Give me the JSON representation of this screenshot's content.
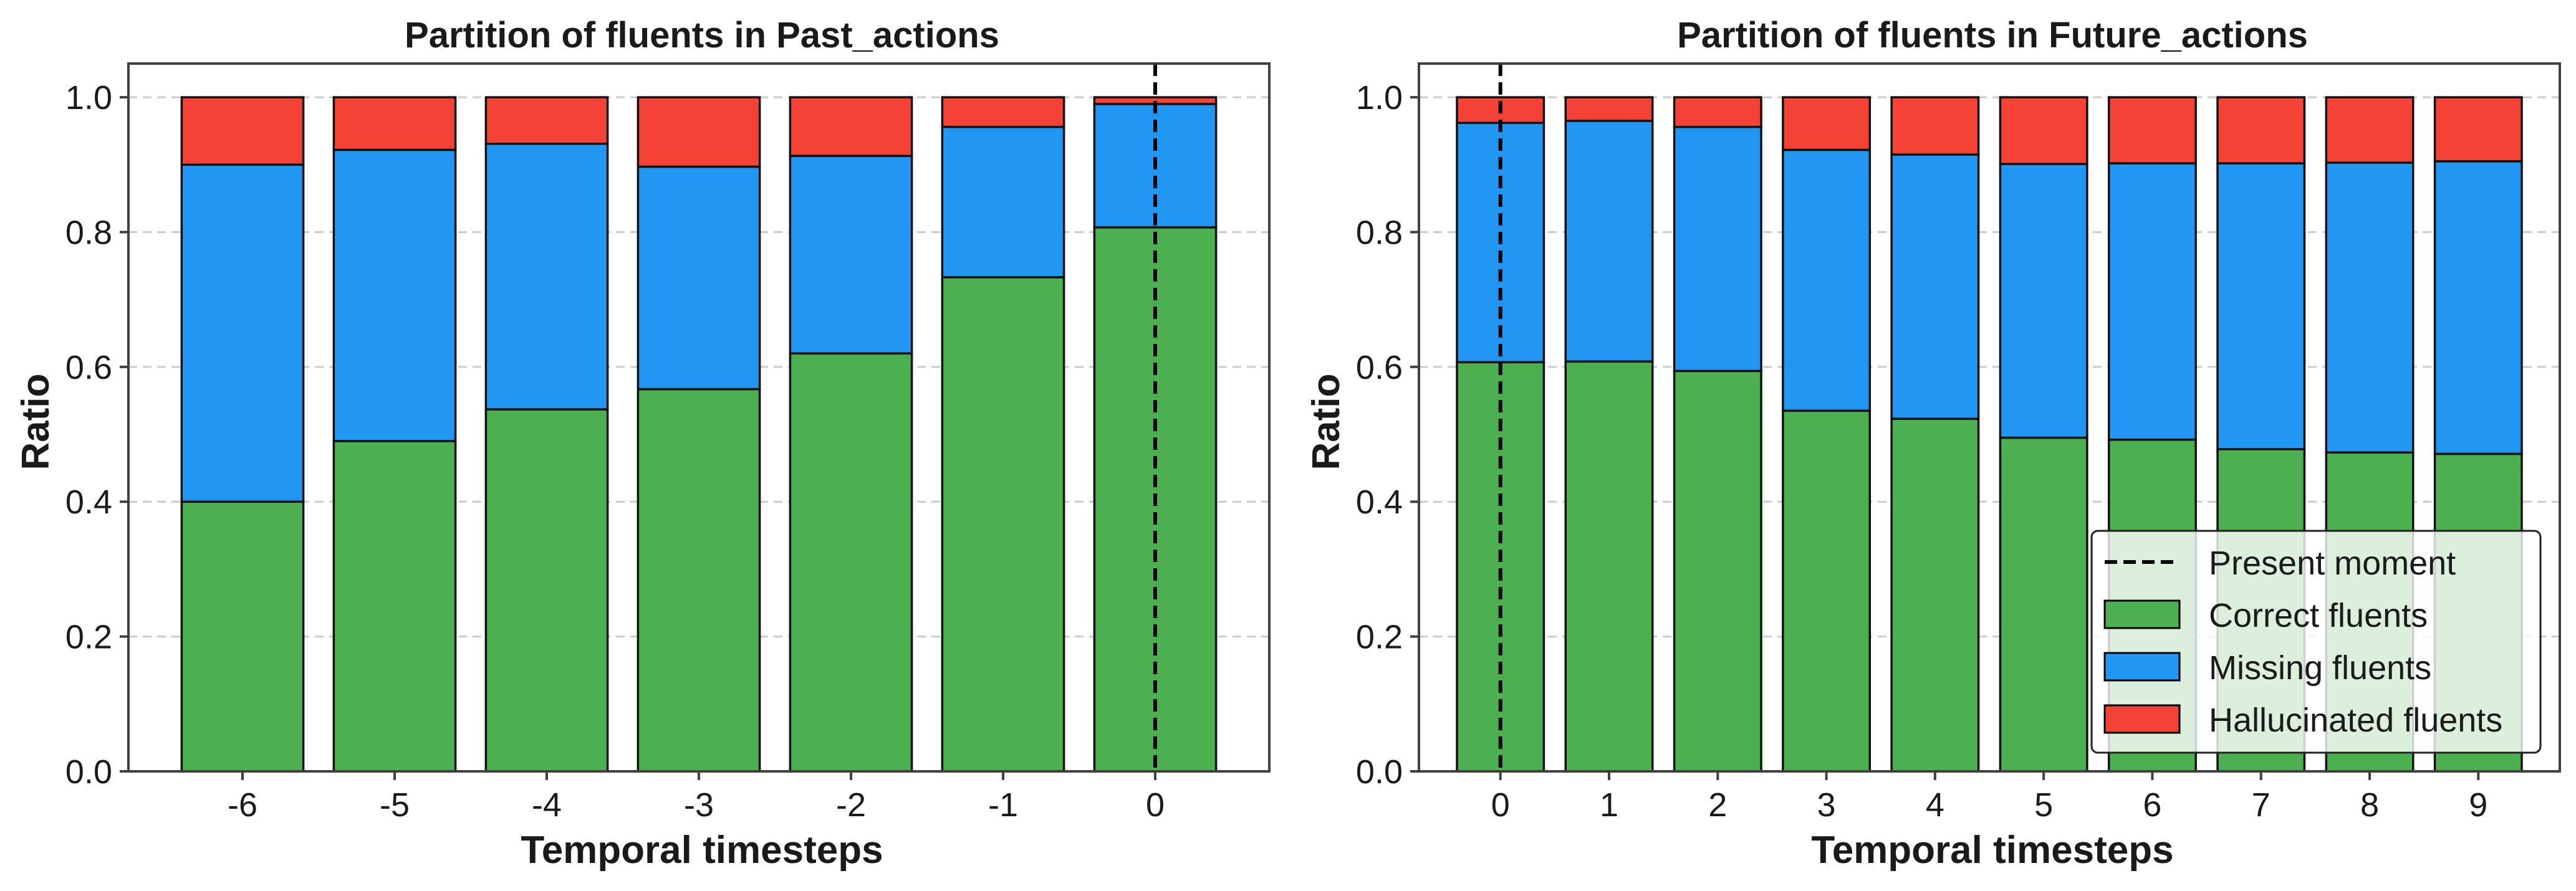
{
  "colors": {
    "correct": "#4CAF50",
    "missing": "#2196F3",
    "hallucinated": "#F44336",
    "grid": "#cccccc",
    "present": "#000000"
  },
  "chart_data": [
    {
      "type": "bar",
      "stacked": true,
      "title": "Partition of fluents in Past_actions",
      "xlabel": "Temporal timesteps",
      "ylabel": "Ratio",
      "categories": [
        "-6",
        "-5",
        "-4",
        "-3",
        "-2",
        "-1",
        "0"
      ],
      "ylim": [
        0,
        1.05
      ],
      "yticks": [
        "0.0",
        "0.2",
        "0.4",
        "0.6",
        "0.8",
        "1.0"
      ],
      "grid": "horizontal dashed",
      "present_moment_index": 6,
      "series": [
        {
          "name": "Correct fluents",
          "values": [
            0.4,
            0.49,
            0.537,
            0.567,
            0.62,
            0.733,
            0.807
          ]
        },
        {
          "name": "Missing fluents",
          "values": [
            0.5,
            0.432,
            0.394,
            0.33,
            0.293,
            0.223,
            0.183
          ]
        },
        {
          "name": "Hallucinated fluents",
          "values": [
            0.1,
            0.078,
            0.069,
            0.103,
            0.087,
            0.044,
            0.01
          ]
        }
      ]
    },
    {
      "type": "bar",
      "stacked": true,
      "title": "Partition of fluents in Future_actions",
      "xlabel": "Temporal timesteps",
      "ylabel": "Ratio",
      "categories": [
        "0",
        "1",
        "2",
        "3",
        "4",
        "5",
        "6",
        "7",
        "8",
        "9"
      ],
      "ylim": [
        0,
        1.05
      ],
      "yticks": [
        "0.0",
        "0.2",
        "0.4",
        "0.6",
        "0.8",
        "1.0"
      ],
      "grid": "horizontal dashed",
      "present_moment_index": 0,
      "legend": {
        "position": "lower-right",
        "entries": [
          "Present moment",
          "Correct fluents",
          "Missing fluents",
          "Hallucinated fluents"
        ]
      },
      "series": [
        {
          "name": "Correct fluents",
          "values": [
            0.607,
            0.608,
            0.594,
            0.535,
            0.523,
            0.495,
            0.492,
            0.478,
            0.473,
            0.471
          ]
        },
        {
          "name": "Missing fluents",
          "values": [
            0.355,
            0.357,
            0.362,
            0.387,
            0.392,
            0.406,
            0.41,
            0.424,
            0.43,
            0.434
          ]
        },
        {
          "name": "Hallucinated fluents",
          "values": [
            0.038,
            0.035,
            0.044,
            0.078,
            0.085,
            0.099,
            0.098,
            0.098,
            0.097,
            0.095
          ]
        }
      ]
    }
  ]
}
